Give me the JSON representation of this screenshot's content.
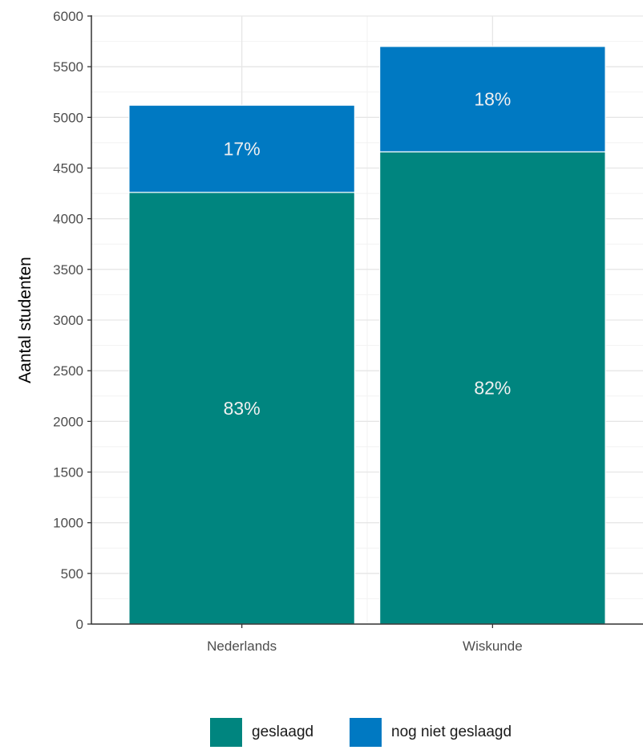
{
  "chart_data": {
    "type": "bar",
    "stacked": true,
    "categories": [
      "Nederlands",
      "Wiskunde"
    ],
    "series": [
      {
        "name": "geslaagd",
        "values": [
          4260,
          4660
        ],
        "color": "#00857F",
        "labels": [
          "83%",
          "82%"
        ]
      },
      {
        "name": "nog niet geslaagd",
        "values": [
          860,
          1040
        ],
        "color": "#0079C2",
        "labels": [
          "17%",
          "18%"
        ]
      }
    ],
    "ylabel": "Aantal studenten",
    "xlabel": "",
    "ylim": [
      0,
      6000
    ],
    "yticks": [
      "0",
      "500",
      "1000",
      "1500",
      "2000",
      "2500",
      "3000",
      "3500",
      "4000",
      "4500",
      "5000",
      "5500",
      "6000"
    ],
    "grid": true,
    "legend_position": "bottom"
  }
}
